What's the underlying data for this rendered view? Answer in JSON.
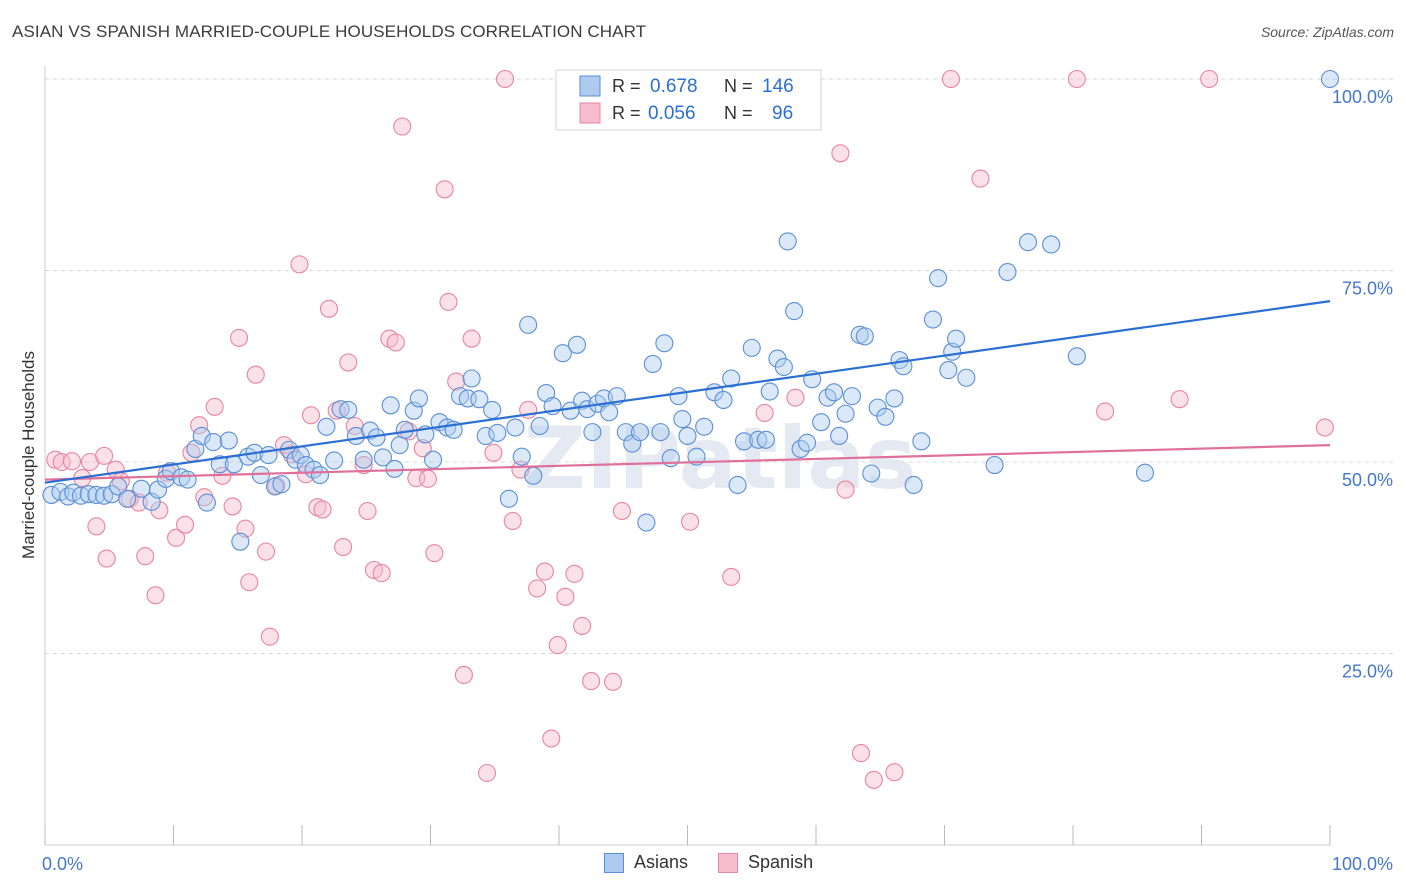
{
  "header": {
    "title": "ASIAN VS SPANISH MARRIED-COUPLE HOUSEHOLDS CORRELATION CHART",
    "source": "Source: ZipAtlas.com"
  },
  "watermark": "ZIPatlas",
  "colors": {
    "asians_fill": "#aecbef",
    "asians_stroke": "#5b8fd6",
    "asians_line": "#2b6fd4",
    "spanish_fill": "#f5bccd",
    "spanish_stroke": "#e8859f",
    "spanish_line": "#e0709a",
    "grid": "#d8d8d8",
    "tick_label": "#4477cc"
  },
  "legend_top": {
    "rows": [
      {
        "r_label": "R =",
        "r_value": "0.678",
        "n_label": "N =",
        "n_value": "146"
      },
      {
        "r_label": "R =",
        "r_value": "0.056",
        "n_label": "N =",
        "n_value": "96"
      }
    ]
  },
  "legend_bottom": {
    "items": [
      "Asians",
      "Spanish"
    ]
  },
  "chart_data": {
    "type": "scatter",
    "title": "ASIAN VS SPANISH MARRIED-COUPLE HOUSEHOLDS CORRELATION CHART",
    "xlabel": "",
    "ylabel": "Married-couple Households",
    "xlim": [
      0,
      100
    ],
    "ylim": [
      0,
      100
    ],
    "x_tick_labels": [
      "0.0%",
      "100.0%"
    ],
    "y_tick_labels": [
      "25.0%",
      "50.0%",
      "75.0%",
      "100.0%"
    ],
    "y_ticks": [
      25,
      50,
      75,
      100
    ],
    "grid": true,
    "legend": "top-center",
    "series": [
      {
        "name": "Asians",
        "r": 0.678,
        "n": 146,
        "trend": {
          "x": [
            0,
            100
          ],
          "y": [
            47.3,
            71.0
          ]
        },
        "points": [
          [
            0.5,
            45.7
          ],
          [
            1.2,
            46.1
          ],
          [
            1.8,
            45.5
          ],
          [
            2.2,
            46.0
          ],
          [
            2.8,
            45.6
          ],
          [
            3.4,
            45.8
          ],
          [
            4.0,
            45.7
          ],
          [
            4.6,
            45.6
          ],
          [
            5.2,
            45.8
          ],
          [
            5.7,
            46.8
          ],
          [
            6.4,
            45.2
          ],
          [
            7.5,
            46.5
          ],
          [
            8.3,
            44.8
          ],
          [
            8.8,
            46.4
          ],
          [
            9.4,
            47.8
          ],
          [
            9.8,
            48.8
          ],
          [
            10.6,
            48.0
          ],
          [
            11.1,
            47.7
          ],
          [
            11.7,
            51.7
          ],
          [
            12.2,
            53.4
          ],
          [
            12.6,
            44.7
          ],
          [
            13.1,
            52.6
          ],
          [
            13.6,
            49.7
          ],
          [
            14.3,
            52.8
          ],
          [
            14.7,
            49.7
          ],
          [
            15.2,
            39.6
          ],
          [
            15.8,
            50.7
          ],
          [
            16.3,
            51.2
          ],
          [
            16.8,
            48.3
          ],
          [
            17.4,
            50.9
          ],
          [
            17.9,
            46.8
          ],
          [
            18.4,
            47.1
          ],
          [
            19.0,
            51.6
          ],
          [
            19.5,
            50.3
          ],
          [
            19.9,
            50.9
          ],
          [
            20.3,
            49.6
          ],
          [
            20.9,
            49.0
          ],
          [
            21.4,
            48.3
          ],
          [
            21.9,
            54.6
          ],
          [
            22.5,
            50.2
          ],
          [
            23.0,
            56.9
          ],
          [
            23.6,
            56.8
          ],
          [
            24.2,
            53.4
          ],
          [
            24.8,
            50.3
          ],
          [
            25.3,
            54.1
          ],
          [
            25.8,
            53.2
          ],
          [
            26.3,
            50.6
          ],
          [
            26.9,
            57.4
          ],
          [
            27.2,
            49.1
          ],
          [
            27.6,
            52.2
          ],
          [
            28.0,
            54.2
          ],
          [
            28.7,
            56.7
          ],
          [
            29.1,
            58.3
          ],
          [
            29.6,
            53.6
          ],
          [
            30.2,
            50.3
          ],
          [
            30.7,
            55.2
          ],
          [
            31.3,
            54.5
          ],
          [
            31.8,
            54.2
          ],
          [
            32.3,
            58.6
          ],
          [
            32.9,
            58.3
          ],
          [
            33.2,
            60.9
          ],
          [
            33.8,
            58.2
          ],
          [
            34.3,
            53.4
          ],
          [
            34.8,
            56.8
          ],
          [
            35.2,
            53.8
          ],
          [
            36.1,
            45.2
          ],
          [
            36.6,
            54.5
          ],
          [
            37.1,
            50.7
          ],
          [
            37.6,
            67.9
          ],
          [
            38.0,
            48.2
          ],
          [
            38.5,
            54.7
          ],
          [
            39.0,
            59.0
          ],
          [
            39.5,
            57.3
          ],
          [
            40.3,
            64.2
          ],
          [
            40.9,
            56.7
          ],
          [
            41.4,
            65.3
          ],
          [
            41.8,
            58.0
          ],
          [
            42.2,
            56.9
          ],
          [
            42.6,
            53.9
          ],
          [
            43.0,
            57.6
          ],
          [
            43.5,
            58.3
          ],
          [
            43.9,
            56.5
          ],
          [
            44.5,
            58.6
          ],
          [
            45.2,
            53.9
          ],
          [
            45.7,
            52.4
          ],
          [
            46.3,
            53.9
          ],
          [
            46.8,
            42.1
          ],
          [
            47.3,
            62.8
          ],
          [
            47.9,
            53.9
          ],
          [
            48.2,
            65.5
          ],
          [
            48.7,
            50.5
          ],
          [
            49.3,
            58.6
          ],
          [
            49.6,
            55.6
          ],
          [
            50.0,
            53.4
          ],
          [
            50.7,
            50.7
          ],
          [
            51.3,
            54.6
          ],
          [
            52.1,
            59.1
          ],
          [
            52.8,
            58.1
          ],
          [
            53.4,
            60.9
          ],
          [
            53.9,
            47.0
          ],
          [
            54.4,
            52.7
          ],
          [
            55.0,
            64.9
          ],
          [
            55.5,
            52.9
          ],
          [
            56.1,
            52.9
          ],
          [
            56.4,
            59.2
          ],
          [
            57.0,
            63.5
          ],
          [
            57.5,
            62.4
          ],
          [
            57.8,
            78.8
          ],
          [
            58.3,
            69.7
          ],
          [
            58.8,
            51.7
          ],
          [
            59.3,
            52.5
          ],
          [
            59.7,
            60.8
          ],
          [
            60.4,
            55.2
          ],
          [
            60.9,
            58.4
          ],
          [
            61.4,
            59.1
          ],
          [
            61.8,
            53.4
          ],
          [
            62.3,
            56.3
          ],
          [
            62.8,
            58.6
          ],
          [
            63.4,
            66.6
          ],
          [
            63.8,
            66.4
          ],
          [
            64.3,
            48.5
          ],
          [
            64.8,
            57.1
          ],
          [
            65.4,
            55.9
          ],
          [
            66.1,
            58.3
          ],
          [
            66.5,
            63.3
          ],
          [
            66.8,
            62.5
          ],
          [
            67.6,
            47.0
          ],
          [
            68.2,
            52.7
          ],
          [
            69.1,
            68.6
          ],
          [
            69.5,
            74.0
          ],
          [
            70.3,
            62.0
          ],
          [
            70.6,
            64.4
          ],
          [
            70.9,
            66.1
          ],
          [
            71.7,
            61.0
          ],
          [
            73.9,
            49.6
          ],
          [
            74.9,
            74.8
          ],
          [
            76.5,
            78.7
          ],
          [
            78.3,
            78.4
          ],
          [
            80.3,
            63.8
          ],
          [
            85.6,
            48.6
          ],
          [
            100.0,
            100.0
          ]
        ]
      },
      {
        "name": "Spanish",
        "r": 0.056,
        "n": 96,
        "trend": {
          "x": [
            0,
            100
          ],
          "y": [
            47.7,
            52.2
          ]
        },
        "points": [
          [
            0.8,
            50.3
          ],
          [
            1.3,
            50.0
          ],
          [
            2.1,
            50.1
          ],
          [
            2.9,
            47.9
          ],
          [
            3.5,
            50.0
          ],
          [
            4.0,
            41.6
          ],
          [
            4.6,
            50.8
          ],
          [
            4.8,
            37.4
          ],
          [
            5.5,
            49.0
          ],
          [
            5.9,
            47.5
          ],
          [
            6.6,
            45.2
          ],
          [
            7.3,
            44.7
          ],
          [
            7.8,
            37.7
          ],
          [
            8.6,
            32.6
          ],
          [
            8.9,
            43.7
          ],
          [
            9.5,
            48.6
          ],
          [
            10.2,
            40.1
          ],
          [
            10.9,
            41.8
          ],
          [
            11.4,
            51.2
          ],
          [
            12.0,
            54.8
          ],
          [
            12.4,
            45.4
          ],
          [
            13.2,
            57.2
          ],
          [
            13.8,
            48.2
          ],
          [
            14.6,
            44.2
          ],
          [
            15.1,
            66.2
          ],
          [
            15.6,
            41.3
          ],
          [
            15.9,
            34.3
          ],
          [
            16.4,
            61.4
          ],
          [
            17.2,
            38.3
          ],
          [
            17.5,
            27.2
          ],
          [
            18.0,
            46.9
          ],
          [
            18.6,
            52.2
          ],
          [
            19.2,
            51.0
          ],
          [
            19.8,
            75.8
          ],
          [
            20.3,
            48.4
          ],
          [
            20.7,
            56.1
          ],
          [
            21.2,
            44.1
          ],
          [
            21.6,
            43.8
          ],
          [
            22.1,
            70.0
          ],
          [
            22.7,
            56.7
          ],
          [
            23.2,
            38.9
          ],
          [
            23.6,
            63.0
          ],
          [
            24.1,
            54.7
          ],
          [
            24.8,
            49.6
          ],
          [
            25.1,
            43.6
          ],
          [
            25.6,
            35.9
          ],
          [
            26.2,
            35.5
          ],
          [
            26.8,
            66.1
          ],
          [
            27.3,
            65.6
          ],
          [
            27.8,
            93.8
          ],
          [
            28.3,
            54.0
          ],
          [
            28.9,
            47.9
          ],
          [
            29.4,
            51.8
          ],
          [
            29.8,
            47.8
          ],
          [
            30.3,
            38.1
          ],
          [
            31.1,
            85.6
          ],
          [
            31.4,
            70.9
          ],
          [
            32.0,
            60.5
          ],
          [
            32.6,
            22.2
          ],
          [
            33.2,
            66.1
          ],
          [
            34.4,
            9.4
          ],
          [
            34.9,
            51.2
          ],
          [
            35.8,
            100.0
          ],
          [
            36.4,
            42.3
          ],
          [
            37.0,
            49.0
          ],
          [
            37.6,
            56.8
          ],
          [
            38.3,
            33.5
          ],
          [
            38.9,
            35.7
          ],
          [
            39.4,
            13.9
          ],
          [
            39.9,
            26.1
          ],
          [
            40.5,
            32.4
          ],
          [
            41.2,
            35.4
          ],
          [
            41.8,
            28.6
          ],
          [
            42.5,
            21.4
          ],
          [
            44.2,
            21.3
          ],
          [
            44.9,
            43.6
          ],
          [
            50.2,
            42.2
          ],
          [
            53.4,
            35.0
          ],
          [
            56.0,
            56.4
          ],
          [
            58.4,
            58.4
          ],
          [
            61.9,
            90.3
          ],
          [
            62.3,
            46.4
          ],
          [
            63.5,
            12.0
          ],
          [
            64.5,
            8.5
          ],
          [
            66.1,
            9.5
          ],
          [
            70.5,
            100.0
          ],
          [
            72.8,
            87.0
          ],
          [
            80.3,
            100.0
          ],
          [
            82.5,
            56.6
          ],
          [
            88.3,
            58.2
          ],
          [
            90.6,
            100.0
          ],
          [
            99.6,
            54.5
          ]
        ]
      }
    ]
  }
}
